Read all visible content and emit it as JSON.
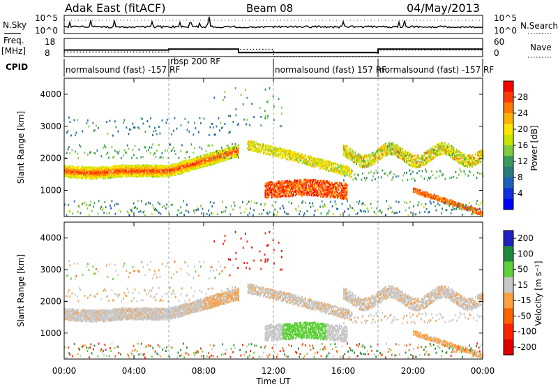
{
  "header": {
    "title_left": "Adak East (fitACF)",
    "title_center": "Beam 08",
    "title_right": "04/May/2013"
  },
  "noise_panel": {
    "label": "N.Sky",
    "left_ticks": [
      "10^5",
      "10^0"
    ],
    "right_ticks": [
      "10^5",
      "10^0"
    ],
    "right_label": "N.Search"
  },
  "freq_panel": {
    "label": "Freq.",
    "unit": "[MHz]",
    "left_ticks": [
      "18",
      "8"
    ],
    "right_ticks": [
      "60",
      "0"
    ],
    "right_label": "Nave"
  },
  "cpid": {
    "label": "CPID",
    "segments": [
      {
        "text": "normalsound (fast) -157 RF",
        "start_h": 0,
        "end_h": 6
      },
      {
        "text": "rbsp 200 RF",
        "start_h": 6,
        "end_h": 12
      },
      {
        "text": "normalsound (fast) 157 RF",
        "start_h": 12,
        "end_h": 18
      },
      {
        "text": "normalsound (fast) -157 RF",
        "start_h": 18,
        "end_h": 24
      }
    ]
  },
  "xaxis": {
    "label": "Time UT",
    "ticks": [
      "00:00",
      "04:00",
      "08:00",
      "12:00",
      "16:00",
      "20:00",
      "00:00"
    ]
  },
  "power_colorbar": {
    "label": "Power [dB]",
    "ticks": [
      "28",
      "24",
      "20",
      "16",
      "12",
      "8",
      "4"
    ],
    "colors": [
      "#ff0000",
      "#ff3a00",
      "#ff7a00",
      "#ffb000",
      "#ffe600",
      "#c8e600",
      "#80cc40",
      "#3a9a60",
      "#2a7a80",
      "#2060b8",
      "#1030e0",
      "#0000ff"
    ]
  },
  "velocity_colorbar": {
    "label": "Velocity [m s⁻¹]",
    "ticks": [
      "200",
      "100",
      "50",
      "15",
      "-15",
      "-50",
      "-100",
      "-200"
    ],
    "colors": [
      "#2020c0",
      "#1e8a3c",
      "#5fd03a",
      "#c8c8c8",
      "#ffa040",
      "#ff6000",
      "#ff2000",
      "#e00000"
    ]
  },
  "chart_data": [
    {
      "type": "line",
      "title": "N.Sky / N.Search",
      "x": [
        0,
        24
      ],
      "series": [],
      "xlim": [
        0,
        24
      ]
    },
    {
      "type": "line",
      "title": "Freq. / Nave",
      "xlim": [
        0,
        24
      ],
      "ylim_left": [
        8,
        18
      ],
      "ylim_right": [
        0,
        60
      ],
      "series": [
        {
          "name": "Freq.",
          "x": [
            0,
            6,
            6,
            10,
            10,
            18,
            18,
            24
          ],
          "values": [
            11.6,
            11.6,
            12.1,
            12.1,
            10.2,
            10.2,
            12.1,
            12.1
          ]
        },
        {
          "name": "Nave",
          "x": [
            0,
            6,
            6,
            12,
            12,
            18,
            18,
            24
          ],
          "values": [
            15,
            15,
            24,
            24,
            0,
            0,
            22,
            22
          ]
        }
      ]
    },
    {
      "type": "heatmap",
      "title": "Power",
      "xlabel": "Time UT",
      "ylabel": "Slant Range [km]",
      "xlim": [
        0,
        24
      ],
      "ylim": [
        180,
        4500
      ],
      "yticks": [
        1000,
        2000,
        3000,
        4000
      ],
      "zlabel": "Power [dB]",
      "zlim": [
        0,
        32
      ]
    },
    {
      "type": "heatmap",
      "title": "Velocity",
      "xlabel": "Time UT",
      "ylabel": "Slant Range [km]",
      "xlim": [
        0,
        24
      ],
      "ylim": [
        180,
        4500
      ],
      "yticks": [
        1000,
        2000,
        3000,
        4000
      ],
      "zlabel": "Velocity [m s⁻¹]",
      "zlim": [
        -250,
        250
      ]
    }
  ]
}
